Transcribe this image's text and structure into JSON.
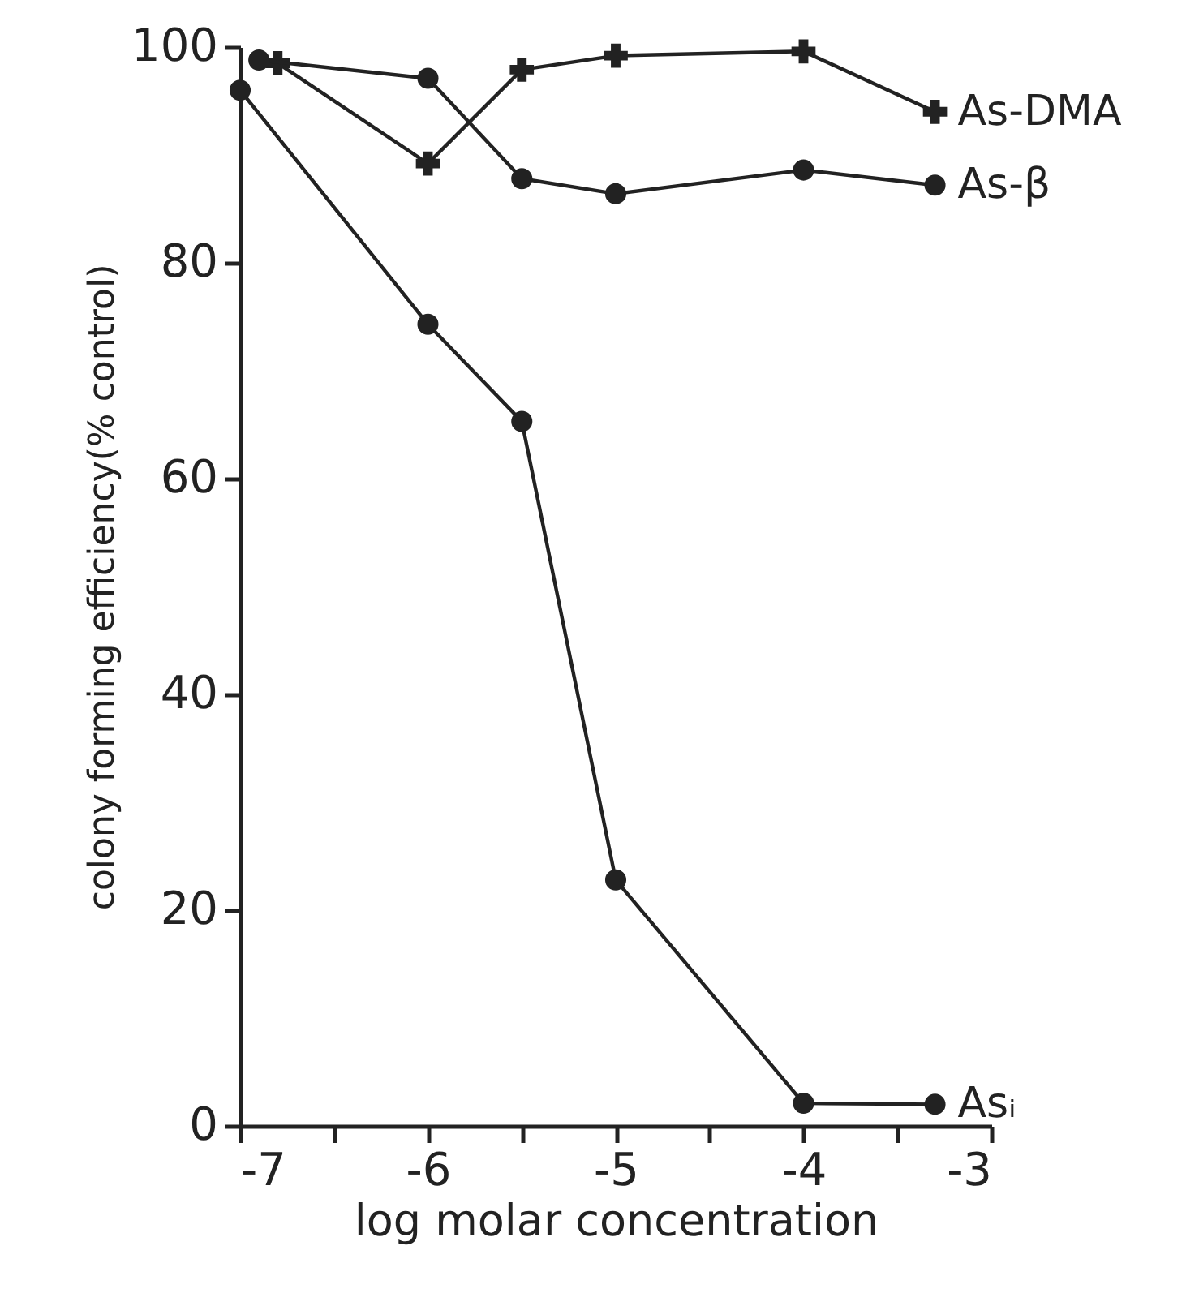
{
  "chart_data": {
    "type": "line",
    "xlabel": "log molar concentration",
    "ylabel": "colony forming efficiency(% control)",
    "xlim": [
      -7,
      -3
    ],
    "ylim": [
      0,
      100
    ],
    "xticks": [
      -7,
      {
        "value": -6.5,
        "label": null
      },
      -6,
      {
        "value": -5.5,
        "label": null
      },
      -5,
      {
        "value": -4.5,
        "label": null
      },
      -4,
      {
        "value": -3.5,
        "label": null
      },
      -3
    ],
    "yticks": [
      0,
      20,
      40,
      60,
      80,
      100
    ],
    "grid": false,
    "legend": false,
    "line_style": "solid",
    "series": [
      {
        "name": "As-DMA",
        "color": "#222222",
        "marker": "cross",
        "x": [
          -6.8,
          -6,
          -5.5,
          -5,
          -4,
          -3.3
        ],
        "values": [
          98.5,
          89.2,
          97.9,
          99.2,
          99.6,
          94.0
        ]
      },
      {
        "name": "As-β",
        "color": "#222222",
        "marker": "circle",
        "x": [
          -6.9,
          -6,
          -5.5,
          -5,
          -4,
          -3.3
        ],
        "values": [
          98.8,
          97.1,
          87.8,
          86.4,
          88.6,
          87.2
        ]
      },
      {
        "name": "Asᵢ",
        "color": "#222222",
        "marker": "circle",
        "x": [
          -7,
          -6,
          -5.5,
          -5,
          -4,
          -3.3
        ],
        "values": [
          96,
          74.3,
          65.3,
          22.8,
          2.1,
          2.0
        ]
      }
    ]
  }
}
